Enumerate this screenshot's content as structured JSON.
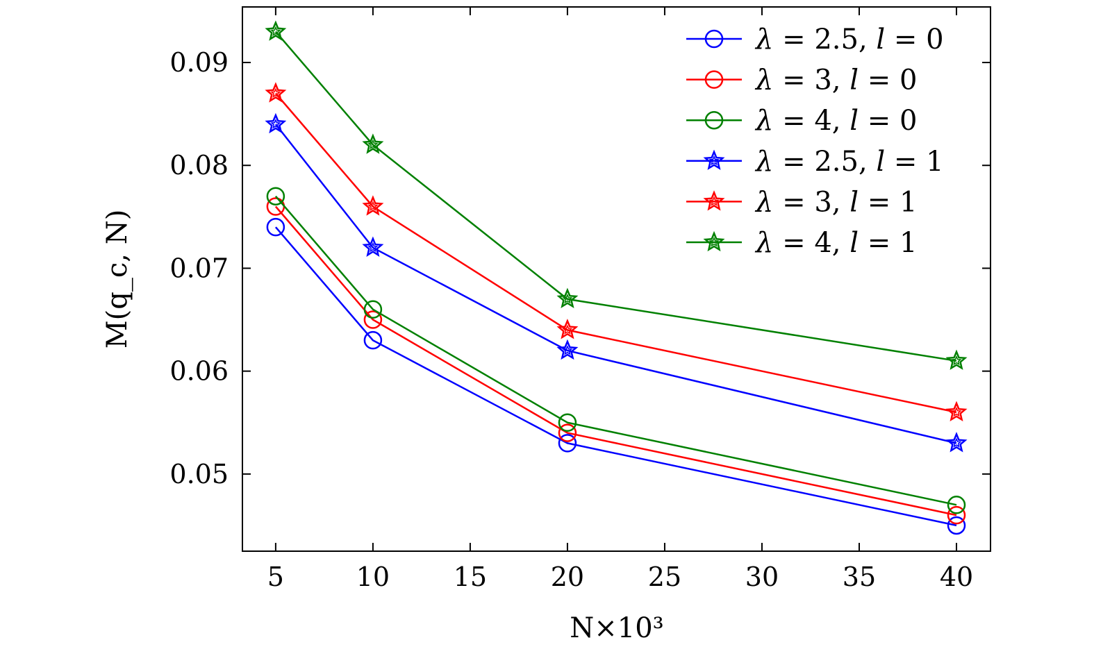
{
  "chart_data": {
    "type": "line",
    "title": "",
    "xlabel": "N×10³",
    "xlabel_parts": {
      "var": "N",
      "times": "×",
      "base": "10",
      "exp": "3"
    },
    "ylabel": "M(q_c, N)",
    "ylabel_parts": {
      "func": "M",
      "open": "(",
      "q": "q",
      "sub": "c",
      "sep": ",",
      "n": "N",
      "close": ")"
    },
    "x": [
      5,
      10,
      20,
      40
    ],
    "xlim": [
      3.29,
      41.75
    ],
    "ylim": [
      0.0425,
      0.0954
    ],
    "xticks": [
      5,
      10,
      15,
      20,
      25,
      30,
      35,
      40
    ],
    "xtick_labels": [
      "5",
      "10",
      "15",
      "20",
      "25",
      "30",
      "35",
      "40"
    ],
    "yticks": [
      0.05,
      0.06,
      0.07,
      0.08,
      0.09
    ],
    "ytick_labels": [
      "0.05",
      "0.06",
      "0.07",
      "0.08",
      "0.09"
    ],
    "grid": false,
    "legend_placement": "top-right",
    "series": [
      {
        "name": "λ = 2.5, l = 0",
        "lambda": "2.5",
        "l": "0",
        "color": "#0000ff",
        "marker": "circle",
        "values": [
          0.074,
          0.063,
          0.053,
          0.045
        ]
      },
      {
        "name": "λ = 3, l = 0",
        "lambda": "3",
        "l": "0",
        "color": "#ff0000",
        "marker": "circle",
        "values": [
          0.076,
          0.065,
          0.054,
          0.046
        ]
      },
      {
        "name": "λ = 4, l = 0",
        "lambda": "4",
        "l": "0",
        "color": "#008000",
        "marker": "circle",
        "values": [
          0.077,
          0.066,
          0.055,
          0.047
        ]
      },
      {
        "name": "λ = 2.5, l = 1",
        "lambda": "2.5",
        "l": "1",
        "color": "#0000ff",
        "marker": "star",
        "values": [
          0.084,
          0.072,
          0.062,
          0.053
        ]
      },
      {
        "name": "λ = 3, l = 1",
        "lambda": "3",
        "l": "1",
        "color": "#ff0000",
        "marker": "star",
        "values": [
          0.087,
          0.076,
          0.064,
          0.056
        ]
      },
      {
        "name": "λ = 4, l = 1",
        "lambda": "4",
        "l": "1",
        "color": "#008000",
        "marker": "star",
        "values": [
          0.093,
          0.082,
          0.067,
          0.061
        ]
      }
    ]
  }
}
